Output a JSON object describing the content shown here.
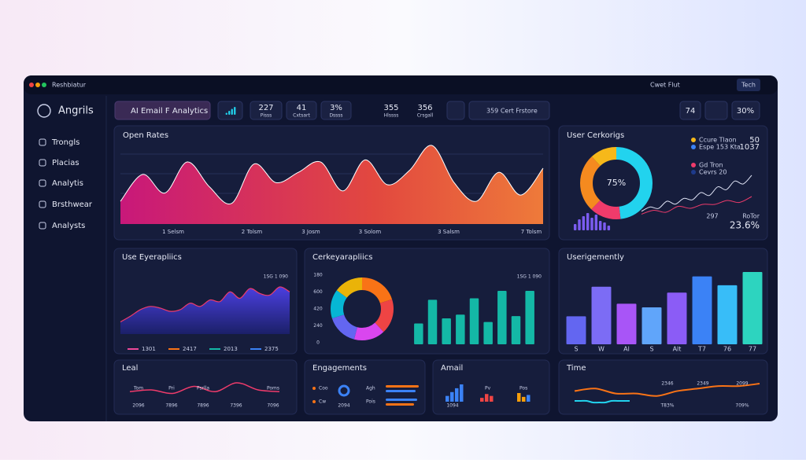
{
  "window": {
    "title": "Reshbiatur",
    "menu": "Cwet Flut",
    "button": "Tech"
  },
  "sidebar": {
    "brand": "Angrils",
    "items": [
      "Trongls",
      "Placias",
      "Analytis",
      "Brsthwear",
      "Analysts"
    ]
  },
  "toolbar": {
    "dropdown": "AI Email F Analytics",
    "mini_bars": [
      3,
      6,
      9,
      12
    ],
    "stats": [
      {
        "value": "227",
        "label": "Pisss"
      },
      {
        "value": "41",
        "label": "Cxtsart"
      },
      {
        "value": "3%",
        "label": "Dssss"
      },
      {
        "value": "355",
        "label": "Hlssss"
      },
      {
        "value": "356",
        "label": "Crsgall"
      }
    ],
    "filter": "359 Cert Frstore",
    "right_value": "74",
    "right_box": "30%"
  },
  "open_rates": {
    "title": "Open Rates",
    "values": [
      22,
      48,
      30,
      60,
      36,
      20,
      58,
      40,
      50,
      60,
      32,
      62,
      38,
      52,
      76,
      40,
      22,
      50,
      28,
      54
    ],
    "labels": [
      "1 Selsm",
      "2 Tolsm",
      "3 Josm",
      "3 Solom",
      "3 Salsm",
      "7 Tolsm"
    ]
  },
  "user_cerkorigs": {
    "title": "User Cerkorigs",
    "center": "75%",
    "segments": [
      48,
      14,
      26,
      12
    ],
    "segment_colors": [
      "#22d3ee",
      "#ef3b6b",
      "#f58a1f",
      "#f6b81a"
    ],
    "legend": [
      {
        "name": "Ccure Tlaon",
        "value": "50",
        "color": "#f6b81a"
      },
      {
        "name": "Espe 153 Kta",
        "value": "1037",
        "color": "#3b82f6"
      },
      {
        "name": "Gd Tron",
        "color": "#ef3b6b"
      },
      {
        "name": "Cevrs 20",
        "color": "#1e3a8a"
      }
    ],
    "bars": [
      8,
      14,
      18,
      22,
      16,
      20,
      12,
      10,
      6
    ],
    "bar_color": "#7b5cf0",
    "line": [
      5,
      8,
      7,
      12,
      10,
      14,
      13,
      18,
      16,
      22,
      20,
      26,
      24,
      30
    ],
    "line2": [
      3,
      5,
      4,
      7,
      6,
      8,
      8,
      10,
      9,
      12
    ],
    "kpi_small": "297",
    "kpi_label": "RoTor",
    "kpi": "23.6%"
  },
  "use_eye": {
    "title": "Use Eyerapliics",
    "note": "1SG 1 090",
    "values": [
      15,
      22,
      30,
      34,
      32,
      28,
      30,
      38,
      34,
      42,
      40,
      52,
      44,
      56,
      50,
      48,
      58,
      52
    ],
    "legend": [
      {
        "name": "1301",
        "color": "#ec4899"
      },
      {
        "name": "2417",
        "color": "#f97316"
      },
      {
        "name": "2013",
        "color": "#14b8a6"
      },
      {
        "name": "2375",
        "color": "#3b82f6"
      }
    ]
  },
  "cerk": {
    "title": "Cerkeyarapliics",
    "note": "1SG 1 090",
    "axis_labels": [
      "180",
      "600",
      "420",
      "240",
      "0"
    ],
    "donut": [
      20,
      18,
      16,
      16,
      15,
      15
    ],
    "donut_colors": [
      "#f97316",
      "#ef4444",
      "#d946ef",
      "#6366f1",
      "#06b6d4",
      "#eab308"
    ],
    "bars": [
      28,
      60,
      35,
      40,
      62,
      30,
      72,
      38,
      72
    ],
    "bar_color": "#14b8a6"
  },
  "userig": {
    "title": "Userigemently",
    "bars": [
      38,
      78,
      55,
      50,
      70,
      92,
      80,
      98
    ],
    "colors": [
      "#6366f1",
      "#7c6cf5",
      "#a855f7",
      "#60a5fa",
      "#8b5cf6",
      "#3b82f6",
      "#38bdf8",
      "#2dd4bf"
    ],
    "labels": [
      "S",
      "W",
      "Al",
      "S",
      "Alt",
      "T7",
      "76",
      "77"
    ]
  },
  "leal": {
    "title": "Leal",
    "values": [
      3,
      4,
      2,
      6,
      3,
      8,
      4,
      3
    ],
    "top_labels": [
      "Tom",
      "Pri",
      "Psrlla",
      "Poms"
    ],
    "bottom_labels": [
      "2096",
      "7896",
      "7896",
      "7396",
      "7096"
    ]
  },
  "engagements": {
    "title": "Engagements",
    "rows": [
      "Coo",
      "Cw"
    ],
    "right_rows": [
      "Agh",
      "Pois"
    ],
    "value": "2094",
    "bars": [
      42,
      38,
      40,
      36
    ],
    "colors": [
      "#f97316",
      "#3b82f6",
      "#3b82f6",
      "#f97316"
    ]
  },
  "amail": {
    "title": "Amail",
    "labels": [
      "Pv",
      "Pos"
    ],
    "value": "1094",
    "bars": [
      6,
      10,
      14,
      18,
      4,
      8,
      6,
      9,
      5,
      7
    ],
    "colors": [
      "#3b82f6",
      "#3b82f6",
      "#3b82f6",
      "#3b82f6",
      "#ef4444",
      "#ef4444",
      "#ef4444",
      "#f59e0b",
      "#f59e0b",
      "#3b82f6"
    ]
  },
  "time": {
    "title": "Time",
    "orange": [
      4,
      5,
      3,
      3,
      2,
      4,
      5,
      6,
      6,
      7
    ],
    "blue": [
      2,
      2,
      2,
      1,
      1,
      1,
      2,
      2,
      2,
      2
    ],
    "top_labels": [
      "2346",
      "2349",
      "2099"
    ],
    "bottom_labels": [
      "T83%",
      "709%"
    ]
  }
}
